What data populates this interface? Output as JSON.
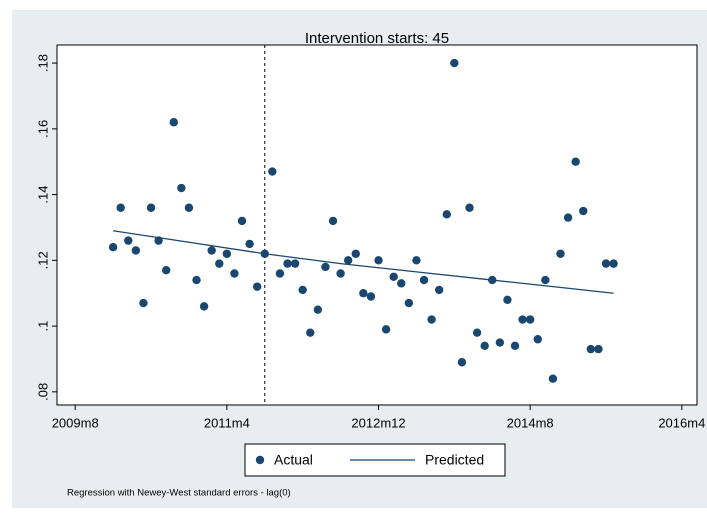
{
  "chart_data": {
    "type": "scatter_line",
    "title": "Intervention starts: 45",
    "note": "Regression with Newey-West standard errors - lag(0)",
    "xlim": [
      592.6,
      677
    ],
    "ylim": [
      0.076,
      0.1855
    ],
    "xticks": [
      {
        "value": 595,
        "label": "2009m8"
      },
      {
        "value": 615,
        "label": "2011m4"
      },
      {
        "value": 635,
        "label": "2012m12"
      },
      {
        "value": 655,
        "label": "2014m8"
      },
      {
        "value": 675,
        "label": "2016m4"
      }
    ],
    "yticks": [
      {
        "value": 0.08,
        "label": ".08"
      },
      {
        "value": 0.1,
        "label": ".1"
      },
      {
        "value": 0.12,
        "label": ".12"
      },
      {
        "value": 0.14,
        "label": ".14"
      },
      {
        "value": 0.16,
        "label": ".16"
      },
      {
        "value": 0.18,
        "label": ".18"
      }
    ],
    "xline": 620,
    "series": [
      {
        "name": "Actual",
        "kind": "scatter",
        "color": "#1a476f",
        "x": [
          600,
          601,
          602,
          603,
          604,
          605,
          606,
          607,
          608,
          609,
          610,
          611,
          612,
          613,
          614,
          615,
          616,
          617,
          618,
          619,
          620,
          621,
          622,
          623,
          624,
          625,
          626,
          627,
          628,
          629,
          630,
          631,
          632,
          633,
          634,
          635,
          636,
          637,
          638,
          639,
          640,
          641,
          642,
          643,
          644,
          645,
          646,
          647,
          648,
          649,
          650,
          651,
          652,
          653,
          654,
          655,
          656,
          657,
          658,
          659,
          660,
          661,
          662,
          663,
          664,
          665,
          666
        ],
        "values": [
          0.124,
          0.136,
          0.126,
          0.123,
          0.107,
          0.136,
          0.126,
          0.117,
          0.162,
          0.142,
          0.136,
          0.114,
          0.106,
          0.123,
          0.119,
          0.122,
          0.116,
          0.132,
          0.125,
          0.112,
          0.122,
          0.147,
          0.116,
          0.119,
          0.119,
          0.111,
          0.098,
          0.105,
          0.118,
          0.132,
          0.116,
          0.12,
          0.122,
          0.11,
          0.109,
          0.12,
          0.099,
          0.115,
          0.113,
          0.107,
          0.12,
          0.114,
          0.102,
          0.111,
          0.134,
          0.18,
          0.089,
          0.136,
          0.098,
          0.094,
          0.114,
          0.095,
          0.108,
          0.094,
          0.102,
          0.102,
          0.096,
          0.114,
          0.084,
          0.122,
          0.133,
          0.15,
          0.135,
          0.093,
          0.093,
          0.119,
          0.119
        ]
      },
      {
        "name": "Predicted",
        "kind": "line",
        "color": "#1a476f",
        "x": [
          600,
          610,
          620,
          630,
          640,
          650,
          660,
          666
        ],
        "values": [
          0.129,
          0.1255,
          0.122,
          0.119,
          0.1165,
          0.114,
          0.1115,
          0.11
        ]
      }
    ]
  }
}
